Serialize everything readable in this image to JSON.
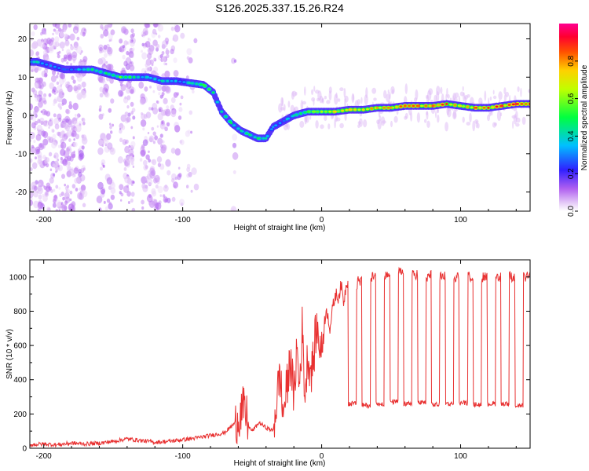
{
  "title": "S126.2025.337.15.26.R24",
  "chart_data": [
    {
      "type": "heatmap",
      "xlabel": "Height of straight line (km)",
      "ylabel": "Frequency (Hz)",
      "xlim": [
        -210,
        150
      ],
      "ylim": [
        -25,
        24
      ],
      "xticks": [
        -200,
        -100,
        0,
        100
      ],
      "yticks": [
        -20,
        -10,
        0,
        10,
        20
      ],
      "colorbar": {
        "label": "Normalized spectral amplitude",
        "range": [
          0,
          1
        ],
        "ticks": [
          0.0,
          0.2,
          0.4,
          0.6,
          0.8
        ],
        "tick_labels": [
          "0.0",
          "0.2",
          "0.4",
          "0.6",
          "0.8"
        ],
        "colors": [
          "#ffffff",
          "#d8b0f0",
          "#a040f0",
          "#2020ff",
          "#00d0ff",
          "#00ff60",
          "#ffff00",
          "#ff8000",
          "#ff0000",
          "#ff0080"
        ]
      },
      "ridge": {
        "x": [
          -205,
          -195,
          -185,
          -175,
          -165,
          -155,
          -145,
          -135,
          -125,
          -115,
          -105,
          -95,
          -85,
          -78,
          -72,
          -65,
          -58,
          -52,
          -46,
          -40,
          -35,
          -30,
          -25,
          -20,
          -15,
          -10,
          -5,
          0,
          10,
          20,
          30,
          40,
          50,
          60,
          70,
          80,
          90,
          100,
          110,
          120,
          130,
          140,
          150
        ],
        "y": [
          14,
          13,
          12,
          12,
          12,
          11,
          10,
          10,
          10,
          9,
          9,
          8.5,
          8,
          6,
          1,
          -2,
          -4,
          -5,
          -6,
          -6,
          -3,
          -2,
          -1,
          0,
          0.5,
          1,
          1,
          1,
          1,
          1.5,
          1.5,
          2,
          2,
          2.5,
          2.5,
          2.5,
          3,
          2.5,
          2,
          2,
          2.5,
          3,
          3
        ],
        "amplitude": [
          0.45,
          0.35,
          0.3,
          0.4,
          0.5,
          0.5,
          0.6,
          0.5,
          0.4,
          0.45,
          0.4,
          0.45,
          0.55,
          0.5,
          0.45,
          0.5,
          0.45,
          0.5,
          0.5,
          0.45,
          0.35,
          0.35,
          0.4,
          0.45,
          0.5,
          0.55,
          0.6,
          0.65,
          0.75,
          0.75,
          0.75,
          0.8,
          0.8,
          0.85,
          0.85,
          0.85,
          0.9,
          0.7,
          0.85,
          0.9,
          0.9,
          0.9,
          0.9
        ]
      }
    },
    {
      "type": "line",
      "xlabel": "Height of straight line (km)",
      "ylabel": "SNR (10 * v/v)",
      "xlim": [
        -210,
        150
      ],
      "ylim": [
        0,
        1100
      ],
      "xticks": [
        -200,
        -100,
        0,
        100
      ],
      "yticks": [
        0,
        200,
        400,
        600,
        800,
        1000
      ],
      "color": "#e83030",
      "series": [
        {
          "name": "SNR",
          "x": [
            -210,
            -200,
            -190,
            -180,
            -170,
            -160,
            -150,
            -140,
            -130,
            -120,
            -110,
            -100,
            -90,
            -80,
            -70,
            -62,
            -57,
            -54,
            -52,
            -50,
            -45,
            -40,
            -35,
            -32,
            -30,
            -28,
            -25,
            -22,
            -20,
            -18,
            -16,
            -14,
            -12,
            -10,
            -8,
            -6,
            -4,
            -2,
            0,
            2,
            4,
            6,
            8,
            10,
            12,
            14,
            16,
            18,
            20,
            25,
            30,
            35,
            40,
            45,
            50,
            55,
            60,
            65,
            70,
            75,
            80,
            85,
            90,
            95,
            100,
            105,
            110,
            115,
            120,
            125,
            130,
            135,
            140,
            145,
            150
          ],
          "y": [
            20,
            25,
            20,
            30,
            25,
            30,
            40,
            55,
            45,
            35,
            40,
            50,
            60,
            75,
            90,
            150,
            230,
            180,
            120,
            100,
            150,
            120,
            100,
            300,
            450,
            200,
            350,
            550,
            250,
            600,
            350,
            700,
            300,
            550,
            450,
            500,
            700,
            650,
            550,
            750,
            800,
            700,
            820,
            900,
            880,
            950,
            850,
            980,
            950,
            960,
            980,
            1000,
            1010,
            1000,
            1020,
            1030,
            1020,
            1010,
            1020,
            1000,
            1010,
            1000,
            1010,
            1000,
            1005,
            1000,
            1010,
            1000,
            995,
            1000,
            1000,
            1005,
            995,
            1000,
            1000
          ]
        }
      ],
      "dropouts": {
        "x_centers": [
          22,
          32,
          42,
          52,
          62,
          72,
          82,
          92,
          102,
          112,
          122,
          132,
          142
        ],
        "floor_y": [
          260,
          250,
          260,
          270,
          260,
          265,
          255,
          260,
          265,
          255,
          260,
          260,
          250
        ]
      }
    }
  ]
}
